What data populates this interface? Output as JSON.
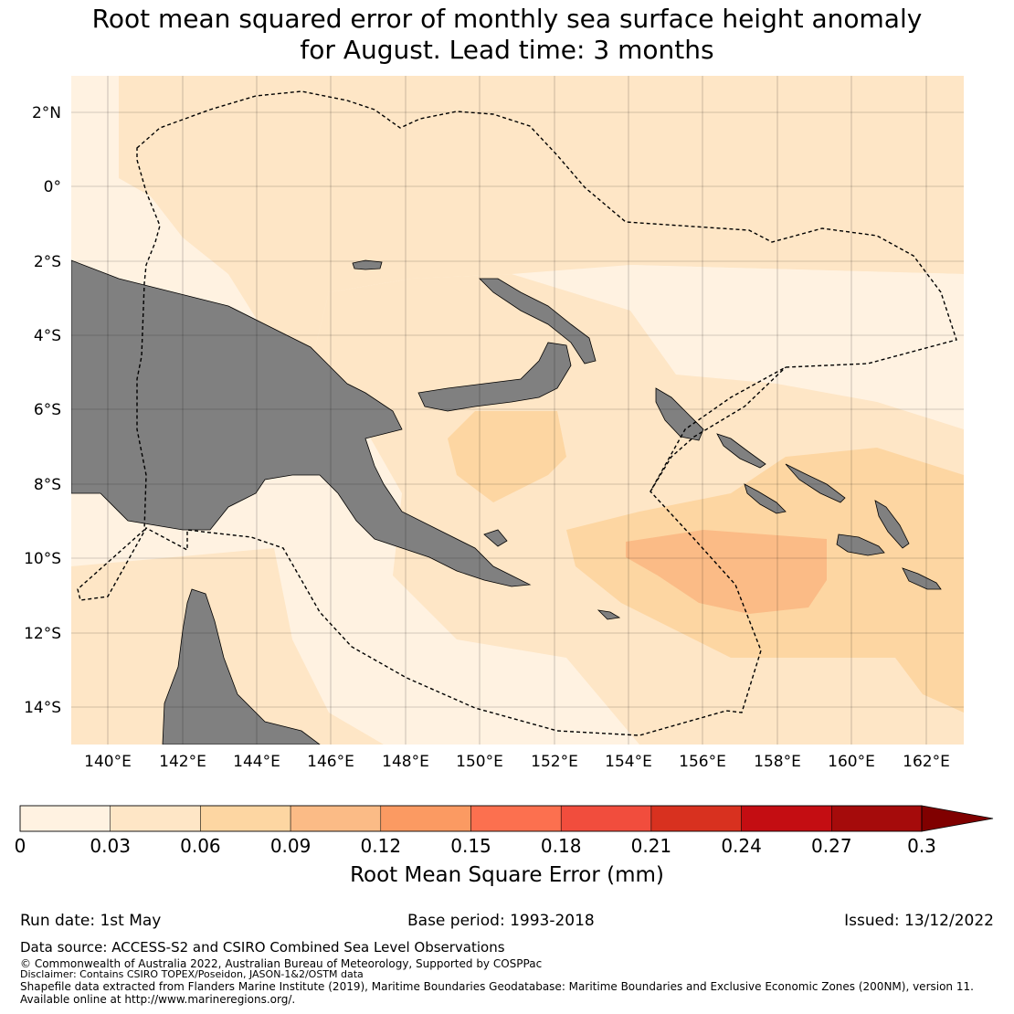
{
  "title_line1": "Root mean squared error of monthly sea surface height anomaly",
  "title_line2": "for August. Lead time: 3 months",
  "map": {
    "lon_ticks": [
      "140°E",
      "142°E",
      "144°E",
      "146°E",
      "148°E",
      "150°E",
      "152°E",
      "154°E",
      "156°E",
      "158°E",
      "160°E",
      "162°E"
    ],
    "lat_ticks": [
      "2°N",
      "0°",
      "2°S",
      "4°S",
      "6°S",
      "8°S",
      "10°S",
      "12°S",
      "14°S"
    ],
    "lon_range": [
      139,
      163
    ],
    "lat_range": [
      -15,
      3
    ],
    "land_color": "#808080",
    "eez_line": "dashed black",
    "rmse_regions_mm": [
      {
        "bin": "0-0.03",
        "color": "#fff2e1"
      },
      {
        "bin": "0.03-0.06",
        "color": "#fee6c6"
      },
      {
        "bin": "0.06-0.09",
        "color": "#fdd6a2"
      },
      {
        "bin": "0.09-0.12",
        "color": "#fbbb86"
      }
    ]
  },
  "colorbar": {
    "label": "Root Mean Square Error (mm)",
    "ticks": [
      "0",
      "0.03",
      "0.06",
      "0.09",
      "0.12",
      "0.15",
      "0.18",
      "0.21",
      "0.24",
      "0.27",
      "0.3"
    ],
    "colors": [
      "#fff2e1",
      "#fee6c6",
      "#fdd6a2",
      "#fbbb86",
      "#fb9a62",
      "#fc704f",
      "#f14d3d",
      "#d8311f",
      "#c40d12",
      "#a50b0b"
    ],
    "extend_color": "#800000"
  },
  "footer": {
    "run_date": "Run date: 1st May",
    "base_period": "Base period: 1993-2018",
    "issued": "Issued: 13/12/2022",
    "data_source": "Data source: ACCESS-S2 and CSIRO Combined Sea Level Observations",
    "copyright": "© Commonwealth of Australia 2022, Australian Bureau of Meteorology, Supported by COSPPac",
    "disclaimer": "Disclaimer: Contains CSIRO TOPEX/Poseidon, JASON-1&2/OSTM data",
    "shapefile": "Shapefile data extracted from Flanders Marine Institute (2019), Maritime Boundaries Geodatabase: Maritime Boundaries and Exclusive Economic Zones (200NM), version 11.",
    "available": "Available online at http://www.marineregions.org/."
  }
}
